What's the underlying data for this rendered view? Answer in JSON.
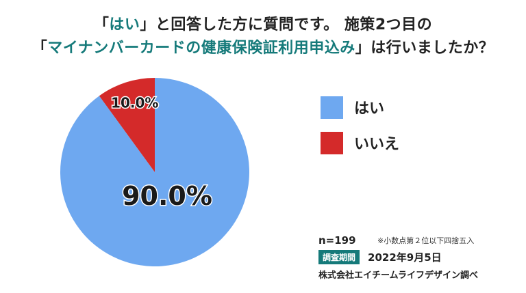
{
  "title": {
    "line1_open": "「",
    "line1_accent": "はい",
    "line1_rest": "」と回答した方に質問です。 施策2つ目の",
    "line2_open": "「",
    "line2_accent": "マイナンバーカードの健康保険証利用申込み",
    "line2_rest": "」は行いましたか？"
  },
  "chart_data": {
    "type": "pie",
    "categories": [
      "はい",
      "いいえ"
    ],
    "values": [
      90.0,
      10.0
    ],
    "data_labels": [
      "90.0%",
      "10.0%"
    ],
    "colors": [
      "#6ea8f0",
      "#d42a2a"
    ],
    "legend_position": "right"
  },
  "legend": [
    {
      "label": "はい",
      "color": "#6ea8f0"
    },
    {
      "label": "いいえ",
      "color": "#d42a2a"
    }
  ],
  "notes": {
    "n": "n=199",
    "rounding_note": "※小数点第２位以下四捨五入",
    "period_label": "調査期間",
    "period_date": "2022年9月5日",
    "company": "株式会社エイチームライフデザイン調べ"
  }
}
